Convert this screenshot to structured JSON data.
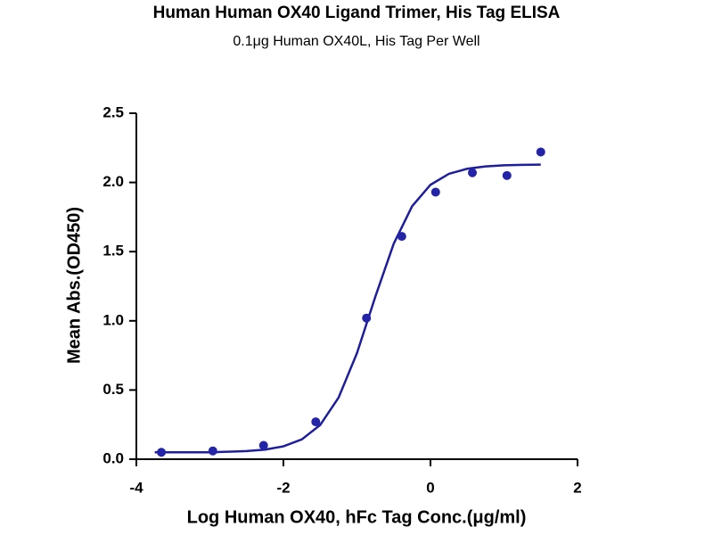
{
  "chart_data": {
    "type": "scatter",
    "title": "Human Human OX40 Ligand Trimer, His Tag ELISA",
    "subtitle": "0.1μg Human OX40L, His Tag Per Well",
    "x_label": "Log Human OX40, hFc Tag Conc.(μg/ml)",
    "y_label": "Mean Abs.(OD450)",
    "xlim": [
      -4,
      2
    ],
    "xticks": [
      -4,
      -2,
      0,
      2
    ],
    "ylim": [
      0,
      2.5
    ],
    "yticks": [
      {
        "value": 0,
        "label": "0.0"
      },
      {
        "value": 0.5,
        "label": "0.5"
      },
      {
        "value": 1,
        "label": "1.0"
      },
      {
        "value": 1.5,
        "label": "1.5"
      },
      {
        "value": 2,
        "label": "2.0"
      },
      {
        "value": 2.5,
        "label": "2.5"
      }
    ],
    "series": [
      {
        "color": "#2424a8",
        "x": [
          -3.66,
          -2.96,
          -2.27,
          -1.56,
          -0.87,
          -0.39,
          0.07,
          0.57,
          1.04,
          1.5
        ],
        "values": [
          0.05,
          0.06,
          0.1,
          0.27,
          1.02,
          1.61,
          1.93,
          2.07,
          2.05,
          2.22
        ]
      }
    ],
    "fit": {
      "color": "#1e1e9c",
      "x": [
        -3.75,
        -3.5,
        -3.25,
        -3,
        -2.75,
        -2.5,
        -2.25,
        -2,
        -1.75,
        -1.5,
        -1.25,
        -1,
        -0.75,
        -0.5,
        -0.25,
        0,
        0.25,
        0.5,
        0.75,
        1,
        1.25,
        1.5
      ],
      "values": [
        0.05,
        0.05,
        0.05,
        0.05,
        0.054,
        0.059,
        0.069,
        0.093,
        0.143,
        0.247,
        0.445,
        0.766,
        1.174,
        1.557,
        1.828,
        1.983,
        2.062,
        2.099,
        2.116,
        2.124,
        2.127,
        2.129
      ]
    }
  }
}
